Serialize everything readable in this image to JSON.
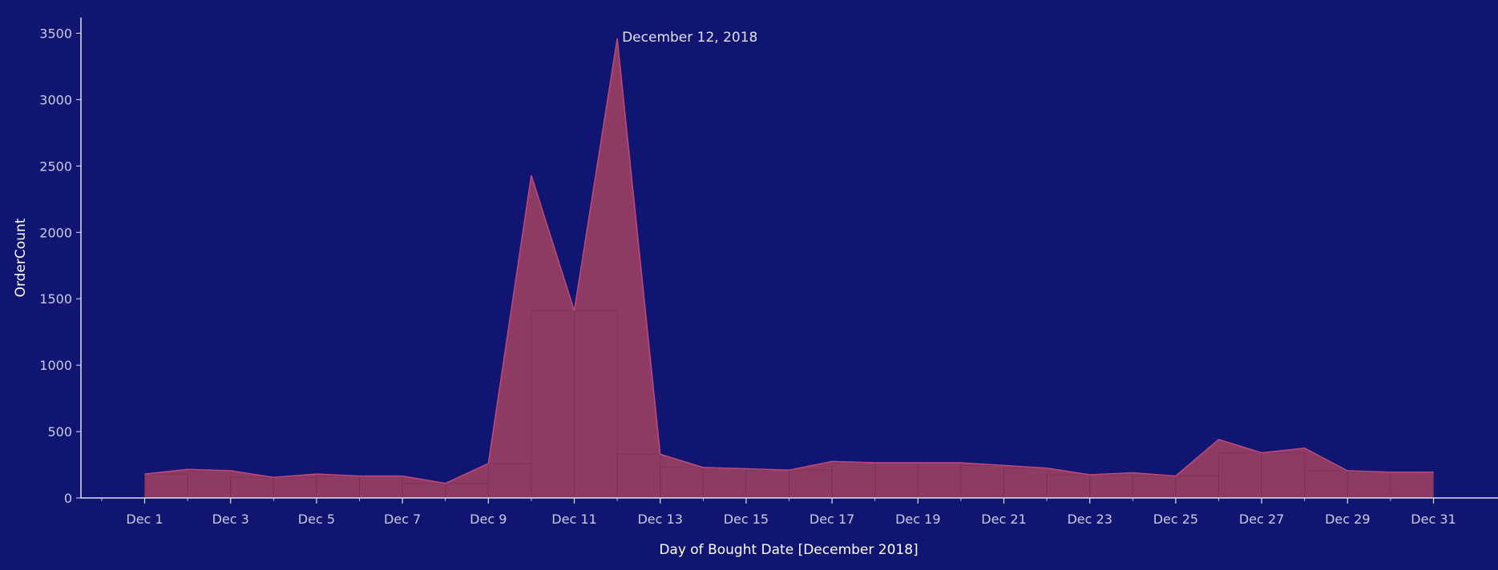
{
  "colors": {
    "background": "#0f1570",
    "area_fill": "#8e3b63",
    "area_stroke": "#c0497a",
    "axis": "#dfe1f4",
    "text": "#c9cce8"
  },
  "chart_data": {
    "type": "area",
    "title": "",
    "xlabel": "Day of Bought Date [December 2018]",
    "ylabel": "OrderCount",
    "ylim": [
      0,
      3650
    ],
    "yticks": [
      0,
      500,
      1000,
      1500,
      2000,
      2500,
      3000,
      3500
    ],
    "xtick_labels": [
      "Dec 1",
      "Dec 3",
      "Dec 5",
      "Dec 7",
      "Dec 9",
      "Dec 11",
      "Dec 13",
      "Dec 15",
      "Dec 17",
      "Dec 19",
      "Dec 21",
      "Dec 23",
      "Dec 25",
      "Dec 27",
      "Dec 29",
      "Dec 31"
    ],
    "x": [
      "Dec 1",
      "Dec 2",
      "Dec 3",
      "Dec 4",
      "Dec 5",
      "Dec 6",
      "Dec 7",
      "Dec 8",
      "Dec 9",
      "Dec 10",
      "Dec 11",
      "Dec 12",
      "Dec 13",
      "Dec 14",
      "Dec 15",
      "Dec 16",
      "Dec 17",
      "Dec 18",
      "Dec 19",
      "Dec 20",
      "Dec 21",
      "Dec 22",
      "Dec 23",
      "Dec 24",
      "Dec 25",
      "Dec 26",
      "Dec 27",
      "Dec 28",
      "Dec 29",
      "Dec 30",
      "Dec 31"
    ],
    "values": [
      180,
      215,
      205,
      155,
      180,
      165,
      165,
      110,
      260,
      2430,
      1410,
      3460,
      330,
      230,
      220,
      210,
      275,
      265,
      265,
      265,
      245,
      225,
      175,
      190,
      165,
      440,
      340,
      375,
      205,
      195,
      195
    ],
    "annotation": {
      "x": "Dec 12",
      "text": "December 12, 2018"
    },
    "grid": false
  }
}
